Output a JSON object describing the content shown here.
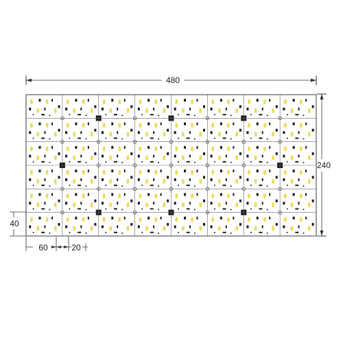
{
  "dimensions": {
    "overall_width": "480",
    "overall_height": "240",
    "module_height": "40",
    "module_width": "60",
    "module_gap": "20"
  },
  "board": {
    "columns": 8,
    "rows": 6,
    "colors": {
      "outline": "#5a5a5a",
      "grid": "#666666",
      "led_yellow": "#f4e04d",
      "led_white": "#fdfdf2",
      "component_dark": "#1c1c1c",
      "dimension_line": "#333333"
    }
  }
}
